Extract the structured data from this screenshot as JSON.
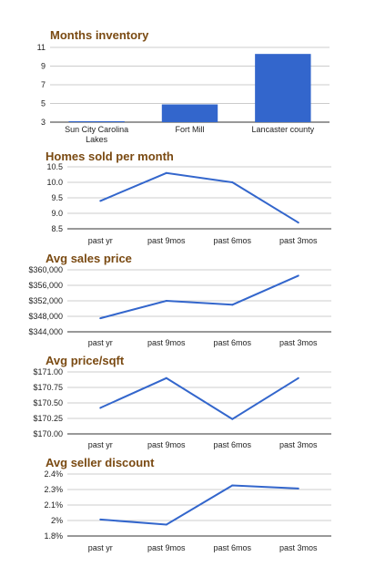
{
  "colors": {
    "series": "#3366cc",
    "title": "#7a4a12",
    "grid": "#cccccc"
  },
  "chart_data": [
    {
      "type": "bar",
      "title": "Months inventory",
      "categories": [
        "Sun City Carolina Lakes",
        "Fort Mill",
        "Lancaster county"
      ],
      "category_lines": [
        [
          "Sun City Carolina",
          "Lakes"
        ],
        [
          "Fort Mill"
        ],
        [
          "Lancaster county"
        ]
      ],
      "values": [
        3.1,
        4.9,
        10.3
      ],
      "ylim": [
        3,
        11
      ],
      "yticks": [
        "3",
        "5",
        "7",
        "9",
        "11"
      ],
      "grid": true
    },
    {
      "type": "line",
      "title": "Homes sold per month",
      "categories": [
        "past yr",
        "past 9mos",
        "past 6mos",
        "past 3mos"
      ],
      "values": [
        9.4,
        10.3,
        10.0,
        8.7
      ],
      "ylim": [
        8.5,
        10.5
      ],
      "yticks": [
        "8.5",
        "9.0",
        "9.5",
        "10.0",
        "10.5"
      ],
      "grid": true
    },
    {
      "type": "line",
      "title": "Avg sales price",
      "categories": [
        "past yr",
        "past 9mos",
        "past 6mos",
        "past 3mos"
      ],
      "values": [
        347500,
        352000,
        351000,
        358500
      ],
      "ylim": [
        344000,
        360000
      ],
      "yticks": [
        "$344,000",
        "$348,000",
        "$352,000",
        "$356,000",
        "$360,000"
      ],
      "grid": true
    },
    {
      "type": "line",
      "title": "Avg price/sqft",
      "categories": [
        "past yr",
        "past 9mos",
        "past 6mos",
        "past 3mos"
      ],
      "values": [
        170.42,
        170.9,
        170.24,
        170.9
      ],
      "ylim": [
        170.0,
        171.0
      ],
      "yticks": [
        "$170.00",
        "$170.25",
        "$170.50",
        "$170.75",
        "$171.00"
      ],
      "grid": true
    },
    {
      "type": "line",
      "title": "Avg seller discount",
      "categories": [
        "past yr",
        "past 9mos",
        "past 6mos",
        "past 3mos"
      ],
      "values": [
        1.96,
        1.91,
        2.29,
        2.26
      ],
      "ylim": [
        1.8,
        2.4
      ],
      "yticks": [
        "1.8%",
        "2%",
        "2.1%",
        "2.3%",
        "2.4%"
      ],
      "grid": true
    }
  ]
}
